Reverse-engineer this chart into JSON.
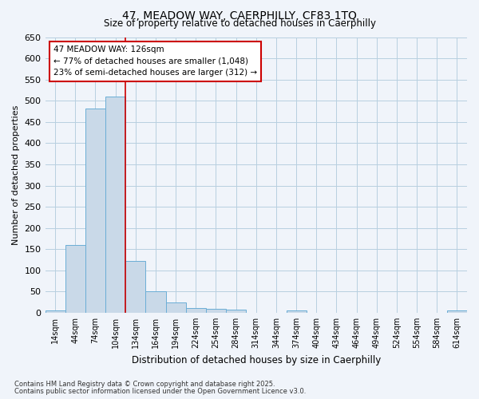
{
  "title1": "47, MEADOW WAY, CAERPHILLY, CF83 1TQ",
  "title2": "Size of property relative to detached houses in Caerphilly",
  "xlabel": "Distribution of detached houses by size in Caerphilly",
  "ylabel": "Number of detached properties",
  "bar_labels": [
    "14sqm",
    "44sqm",
    "74sqm",
    "104sqm",
    "134sqm",
    "164sqm",
    "194sqm",
    "224sqm",
    "254sqm",
    "284sqm",
    "314sqm",
    "344sqm",
    "374sqm",
    "404sqm",
    "434sqm",
    "464sqm",
    "494sqm",
    "524sqm",
    "554sqm",
    "584sqm",
    "614sqm"
  ],
  "bar_values": [
    5,
    160,
    481,
    510,
    122,
    50,
    24,
    12,
    10,
    7,
    0,
    0,
    5,
    0,
    0,
    0,
    0,
    0,
    0,
    0,
    5
  ],
  "bar_color": "#c9d9e8",
  "bar_edge_color": "#6baed6",
  "red_line_color": "#cc0000",
  "annotation_text": "47 MEADOW WAY: 126sqm\n← 77% of detached houses are smaller (1,048)\n23% of semi-detached houses are larger (312) →",
  "annotation_box_facecolor": "#ffffff",
  "annotation_box_edgecolor": "#cc0000",
  "grid_color": "#b8cfe0",
  "background_color": "#f0f4fa",
  "plot_bg_color": "#f0f4fa",
  "ylim": [
    0,
    650
  ],
  "yticks": [
    0,
    50,
    100,
    150,
    200,
    250,
    300,
    350,
    400,
    450,
    500,
    550,
    600,
    650
  ],
  "footer1": "Contains HM Land Registry data © Crown copyright and database right 2025.",
  "footer2": "Contains public sector information licensed under the Open Government Licence v3.0."
}
